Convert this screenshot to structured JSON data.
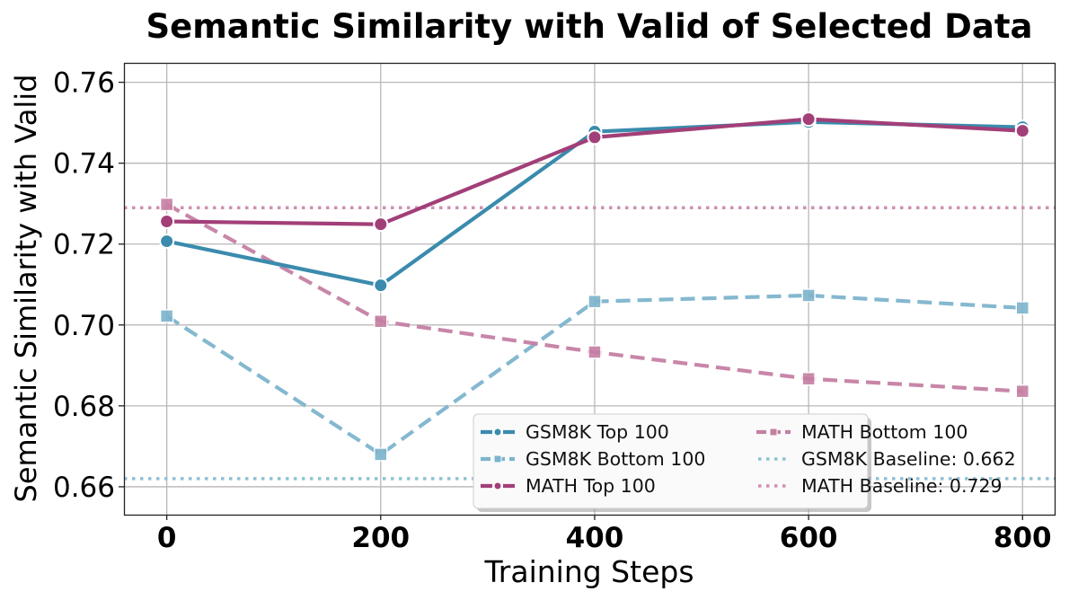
{
  "chart_data": {
    "type": "line",
    "title": "Semantic Similarity with Valid of Selected Data",
    "xlabel": "Training Steps",
    "ylabel": "Semantic Similarity with Valid",
    "x": [
      0,
      200,
      400,
      600,
      800
    ],
    "xticks": [
      "0",
      "200",
      "400",
      "600",
      "800"
    ],
    "xlim": [
      -40,
      830
    ],
    "yticks": [
      "0.66",
      "0.68",
      "0.70",
      "0.72",
      "0.74",
      "0.76"
    ],
    "ytick_values": [
      0.66,
      0.68,
      0.7,
      0.72,
      0.74,
      0.76
    ],
    "ylim": [
      0.6531,
      0.7648
    ],
    "grid": true,
    "legend_position": "lower-right",
    "series": [
      {
        "name": "GSM8K Top 100",
        "values": [
          0.7207,
          0.7098,
          0.7478,
          0.7502,
          0.7489
        ],
        "color": "#3a8bad",
        "style": "solid",
        "marker": "circle"
      },
      {
        "name": "GSM8K Bottom 100",
        "values": [
          0.7022,
          0.668,
          0.7058,
          0.7073,
          0.7042
        ],
        "color": "#7db4cc",
        "style": "dashed",
        "marker": "square"
      },
      {
        "name": "MATH Top 100",
        "values": [
          0.7256,
          0.7249,
          0.7464,
          0.7509,
          0.748
        ],
        "color": "#a23f78",
        "style": "solid",
        "marker": "circle"
      },
      {
        "name": "MATH Bottom 100",
        "values": [
          0.7298,
          0.7009,
          0.6933,
          0.6867,
          0.6836
        ],
        "color": "#c57fa3",
        "style": "dashed",
        "marker": "square"
      }
    ],
    "baselines": [
      {
        "name": "GSM8K Baseline: 0.662",
        "value": 0.662,
        "color": "#8fc0d4"
      },
      {
        "name": "MATH Baseline: 0.729",
        "value": 0.729,
        "color": "#cd91b1"
      }
    ],
    "legend": [
      "GSM8K Top 100",
      "GSM8K Bottom 100",
      "MATH Top 100",
      "MATH Bottom 100",
      "GSM8K Baseline: 0.662",
      "MATH Baseline: 0.729"
    ]
  }
}
